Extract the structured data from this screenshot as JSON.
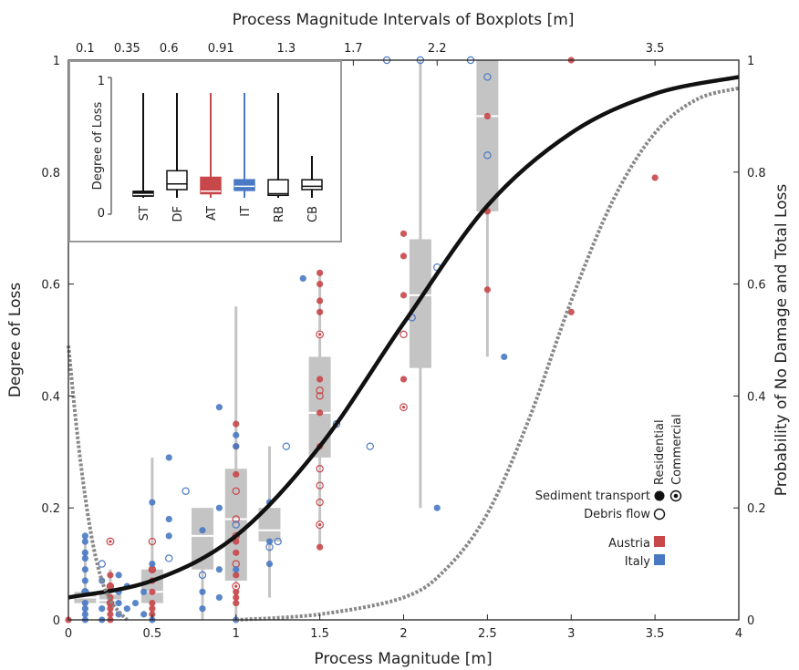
{
  "chart_data": {
    "type": "scatter",
    "title": "",
    "xlabel": "Process Magnitude [m]",
    "ylabel": "Degree of Loss",
    "y2label": "Probability of No Damage and Total Loss",
    "top_xlabel": "Process Magnitude Intervals of Boxplots [m]",
    "xlim": [
      0,
      4
    ],
    "ylim": [
      0,
      1
    ],
    "y2lim": [
      0,
      1
    ],
    "x_ticks": [
      0,
      0.5,
      1,
      1.5,
      2,
      2.5,
      3,
      3.5,
      4
    ],
    "x_tick_labels": [
      "0",
      "0.5",
      "1",
      "1.5",
      "2",
      "2.5",
      "3",
      "3.5",
      "4"
    ],
    "y_ticks": [
      0,
      0.2,
      0.4,
      0.6,
      0.8,
      1
    ],
    "y_tick_labels": [
      "0",
      "0.2",
      "0.4",
      "0.6",
      "0.8",
      "1"
    ],
    "y2_tick_labels": [
      "0",
      "0.2",
      "0.4",
      "0.6",
      "0.8",
      "1"
    ],
    "top_ticks": [
      0.1,
      0.35,
      0.6,
      0.91,
      1.3,
      1.7,
      2.2,
      3.5
    ],
    "top_tick_labels": [
      "0.1",
      "0.35",
      "0.6",
      "0.91",
      "1.3",
      "1.7",
      "2.2",
      "3.5"
    ],
    "grid": false,
    "colors": {
      "austria": "#c8474a",
      "italy": "#4a79c4",
      "sediment": "#111111",
      "debris": "#111111",
      "box": "#c8c8c8",
      "curve_loss": "#111111",
      "curve_prob": "#888888"
    },
    "boxplots": [
      {
        "x": 0.1,
        "q1": 0.03,
        "median": 0.04,
        "q3": 0.05,
        "wlow": 0.0,
        "whigh": 0.14
      },
      {
        "x": 0.25,
        "q1": 0.03,
        "median": 0.035,
        "q3": 0.045,
        "wlow": 0.0,
        "whigh": 0.09
      },
      {
        "x": 0.5,
        "q1": 0.03,
        "median": 0.05,
        "q3": 0.09,
        "wlow": 0.0,
        "whigh": 0.29
      },
      {
        "x": 0.8,
        "q1": 0.09,
        "median": 0.15,
        "q3": 0.2,
        "wlow": 0.0,
        "whigh": 0.2
      },
      {
        "x": 1.0,
        "q1": 0.07,
        "median": 0.18,
        "q3": 0.27,
        "wlow": 0.0,
        "whigh": 0.56
      },
      {
        "x": 1.2,
        "q1": 0.14,
        "median": 0.16,
        "q3": 0.2,
        "wlow": 0.04,
        "whigh": 0.31
      },
      {
        "x": 1.5,
        "q1": 0.29,
        "median": 0.37,
        "q3": 0.47,
        "wlow": 0.13,
        "whigh": 0.62
      },
      {
        "x": 2.1,
        "q1": 0.45,
        "median": 0.58,
        "q3": 0.68,
        "wlow": 0.2,
        "whigh": 1.0
      },
      {
        "x": 2.5,
        "q1": 0.73,
        "median": 0.9,
        "q3": 1.0,
        "wlow": 0.47,
        "whigh": 1.0
      }
    ],
    "series": [
      {
        "name": "Austria",
        "color": "#c8474a",
        "marker": "filled",
        "x": [
          0,
          0.25,
          0.25,
          0.25,
          0.25,
          0.25,
          0.25,
          0.25,
          0.5,
          0.5,
          0.5,
          0.5,
          0.5,
          0.5,
          1.0,
          1.0,
          1.0,
          1.0,
          1.0,
          1.0,
          1.0,
          1.0,
          1.0,
          1.0,
          1.5,
          1.5,
          1.5,
          1.5,
          1.5,
          1.5,
          1.5,
          1.5,
          2.0,
          2.0,
          2.0,
          2.0,
          2.5,
          2.5,
          2.5,
          3.0,
          3.0,
          3.5
        ],
        "y": [
          0,
          0.0,
          0.01,
          0.02,
          0.03,
          0.04,
          0.06,
          0.08,
          0.01,
          0.02,
          0.03,
          0.05,
          0.07,
          0.09,
          0.03,
          0.04,
          0.05,
          0.06,
          0.08,
          0.12,
          0.14,
          0.26,
          0.31,
          0.35,
          0.13,
          0.31,
          0.37,
          0.43,
          0.55,
          0.57,
          0.6,
          0.62,
          0.43,
          0.58,
          0.65,
          0.69,
          0.59,
          0.73,
          0.9,
          0.55,
          1.0,
          0.79
        ]
      },
      {
        "name": "Austria",
        "color": "#c8474a",
        "marker": "open",
        "x": [
          0.25,
          0.25,
          0.5,
          0.5,
          1.0,
          1.0,
          1.0,
          1.0,
          1.5,
          1.5,
          1.5,
          1.5,
          1.5,
          2.0
        ],
        "y": [
          0.03,
          0.06,
          0.09,
          0.14,
          0.1,
          0.15,
          0.18,
          0.23,
          0.21,
          0.24,
          0.27,
          0.4,
          0.41,
          0.51
        ]
      },
      {
        "name": "Austria",
        "color": "#c8474a",
        "marker": "ring",
        "x": [
          0.25,
          1.0,
          1.5,
          1.5,
          2.0
        ],
        "y": [
          0.14,
          0.06,
          0.17,
          0.51,
          0.38
        ]
      },
      {
        "name": "Italy",
        "color": "#4a79c4",
        "marker": "filled",
        "x": [
          0.1,
          0.1,
          0.1,
          0.1,
          0.1,
          0.1,
          0.1,
          0.1,
          0.1,
          0.1,
          0.1,
          0.2,
          0.2,
          0.2,
          0.3,
          0.3,
          0.3,
          0.3,
          0.35,
          0.35,
          0.4,
          0.45,
          0.45,
          0.5,
          0.5,
          0.5,
          0.6,
          0.6,
          0.6,
          0.8,
          0.8,
          0.8,
          0.9,
          0.9,
          0.9,
          0.9,
          1.0,
          1.0,
          1.0,
          1.0,
          1.2,
          1.2,
          1.2,
          1.4,
          2.2,
          2.6
        ],
        "y": [
          0.0,
          0.01,
          0.02,
          0.03,
          0.05,
          0.07,
          0.09,
          0.11,
          0.12,
          0.14,
          0.15,
          0.0,
          0.02,
          0.07,
          0.01,
          0.03,
          0.05,
          0.08,
          0.02,
          0.06,
          0.03,
          0.01,
          0.05,
          0.0,
          0.1,
          0.21,
          0.15,
          0.18,
          0.29,
          0.02,
          0.05,
          0.16,
          0.04,
          0.09,
          0.2,
          0.38,
          0.0,
          0.09,
          0.31,
          0.33,
          0.1,
          0.14,
          0.21,
          0.61,
          0.2,
          0.47
        ]
      },
      {
        "name": "Italy",
        "color": "#4a79c4",
        "marker": "open",
        "x": [
          0.1,
          0.2,
          0.6,
          0.7,
          0.8,
          1.0,
          1.2,
          1.25,
          1.3,
          1.6,
          1.8,
          1.9,
          2.05,
          2.1,
          2.2,
          2.4,
          2.5,
          2.5
        ],
        "y": [
          0.05,
          0.1,
          0.11,
          0.23,
          0.08,
          0.17,
          0.13,
          0.14,
          0.31,
          0.35,
          0.31,
          1.0,
          0.54,
          1.0,
          0.63,
          1.0,
          0.83,
          0.97
        ]
      }
    ],
    "curves": [
      {
        "name": "degree_of_loss_fit",
        "axis": "left",
        "color": "#111111",
        "style": "solid",
        "x": [
          0,
          0.5,
          1.0,
          1.5,
          2.0,
          2.5,
          3.0,
          3.5,
          4.0
        ],
        "y": [
          0.04,
          0.07,
          0.15,
          0.31,
          0.53,
          0.74,
          0.87,
          0.94,
          0.97
        ]
      },
      {
        "name": "prob_total_loss",
        "axis": "right",
        "color": "#888888",
        "style": "dotted",
        "x": [
          1.0,
          1.5,
          2.0,
          2.25,
          2.5,
          2.75,
          3.0,
          3.25,
          3.5,
          3.75,
          4.0
        ],
        "y": [
          0.0,
          0.01,
          0.04,
          0.09,
          0.19,
          0.36,
          0.57,
          0.75,
          0.87,
          0.93,
          0.95
        ]
      },
      {
        "name": "prob_no_damage",
        "axis": "right",
        "color": "#888888",
        "style": "dotted",
        "x": [
          0,
          0.05,
          0.1,
          0.15,
          0.2,
          0.25,
          0.3,
          0.35
        ],
        "y": [
          0.49,
          0.34,
          0.22,
          0.13,
          0.07,
          0.035,
          0.015,
          0.0
        ]
      }
    ],
    "legend": {
      "header_residential": "Residential",
      "header_commercial": "Commercial",
      "sediment_label": "Sediment transport",
      "debris_label": "Debris flow",
      "austria_label": "Austria",
      "italy_label": "Italy"
    },
    "inset": {
      "ylabel": "Degree of Loss",
      "y_top_label": "1",
      "y_bottom_label": "0",
      "boxes": [
        {
          "label": "ST",
          "color": "#111111",
          "fill": "#111111",
          "q1": 0.02,
          "median": 0.04,
          "q3": 0.08,
          "wlow": 0.0,
          "whigh": 0.94
        },
        {
          "label": "DF",
          "color": "#111111",
          "fill": "#ffffff",
          "q1": 0.1,
          "median": 0.17,
          "q3": 0.33,
          "wlow": 0.0,
          "whigh": 0.94
        },
        {
          "label": "AT",
          "color": "#c8474a",
          "fill": "#c8474a",
          "q1": 0.05,
          "median": 0.08,
          "q3": 0.25,
          "wlow": 0.0,
          "whigh": 0.94
        },
        {
          "label": "IT",
          "color": "#4a79c4",
          "fill": "#4a79c4",
          "q1": 0.09,
          "median": 0.14,
          "q3": 0.22,
          "wlow": 0.0,
          "whigh": 0.94
        },
        {
          "label": "RB",
          "color": "#111111",
          "fill": "#ffffff",
          "q1": 0.03,
          "median": 0.05,
          "q3": 0.22,
          "wlow": 0.0,
          "whigh": 0.94
        },
        {
          "label": "CB",
          "color": "#111111",
          "fill": "#ffffff",
          "q1": 0.1,
          "median": 0.14,
          "q3": 0.22,
          "wlow": 0.05,
          "whigh": 0.48
        }
      ]
    }
  }
}
